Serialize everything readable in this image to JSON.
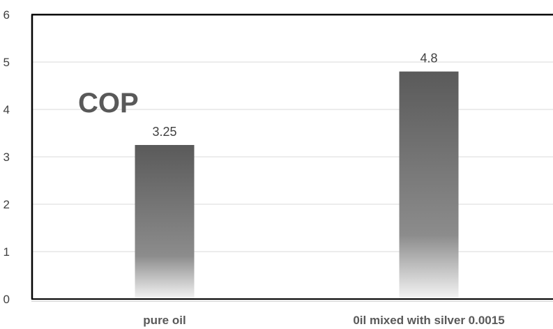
{
  "chart_data": {
    "type": "bar",
    "title": "COP",
    "categories": [
      "pure oil",
      "0il mixed with silver 0.0015"
    ],
    "values": [
      3.25,
      4.8
    ],
    "data_labels": [
      "3.25",
      "4.8"
    ],
    "y_ticks": [
      "0",
      "1",
      "2",
      "3",
      "4",
      "5",
      "6"
    ],
    "ylim": [
      0,
      6
    ],
    "xlabel": "",
    "ylabel": "",
    "grid": true,
    "legend": "none"
  },
  "colors": {
    "bar_top": "#5a5a5a",
    "bar_bottom": "#f4f4f4",
    "grid": "#d9d9d9",
    "axis": "#000000",
    "text": "#404040",
    "title": "#595959"
  }
}
